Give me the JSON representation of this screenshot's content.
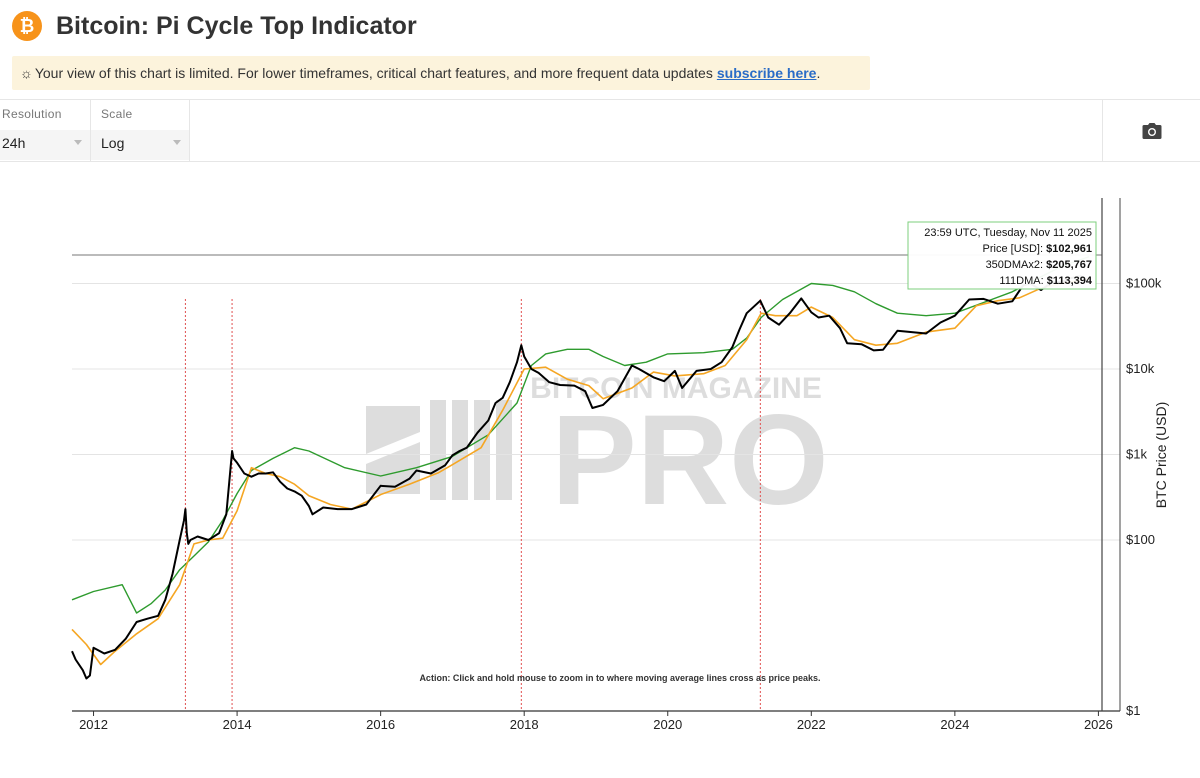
{
  "header": {
    "logo_glyph": "₿",
    "title": "Bitcoin: Pi Cycle Top Indicator"
  },
  "notice": {
    "icon": "sun-icon",
    "text": "Your view of this chart is limited. For lower timeframes, critical chart features, and more frequent data updates",
    "link_text": "subscribe here",
    "after": "."
  },
  "controls": {
    "resolution": {
      "label": "Resolution",
      "value": "24h"
    },
    "scale": {
      "label": "Scale",
      "value": "Log"
    },
    "camera_icon": "camera-icon"
  },
  "colors": {
    "price": "#000000",
    "dma111": "#f5a623",
    "dma350x2": "#2e9b2e",
    "cross": "#e05050",
    "tooltip_border": "#7ccf7c"
  },
  "chart_data": {
    "type": "line",
    "y_scale": "log",
    "ylabel": "BTC Price (USD)",
    "y_ticks": [
      {
        "value": 1,
        "label": "$1"
      },
      {
        "value": 100,
        "label": "$100"
      },
      {
        "value": 1000,
        "label": "$1k"
      },
      {
        "value": 10000,
        "label": "$10k"
      },
      {
        "value": 100000,
        "label": "$100k"
      }
    ],
    "x_ticks": [
      "2012",
      "2014",
      "2016",
      "2018",
      "2020",
      "2022",
      "2024",
      "2026"
    ],
    "xlim": [
      2011.7,
      2026.05
    ],
    "ylim": [
      1,
      1000000
    ],
    "cross_lines": [
      2013.28,
      2013.93,
      2017.96,
      2021.29
    ],
    "tooltip": {
      "date": "23:59 UTC, Tuesday, Nov 11 2025",
      "price_label": "Price [USD]:",
      "price_value": "$102,961",
      "dma350_label": "350DMAx2:",
      "dma350_value": "$205,767",
      "dma111_label": "111DMA:",
      "dma111_value": "$113,394"
    },
    "action_note": "Action: Click and hold mouse to zoom in to where moving average lines cross as price peaks.",
    "watermark": {
      "top": "BITCOIN MAGAZINE",
      "main": "PRO"
    },
    "series": [
      {
        "name": "Price [USD]",
        "x": [
          2011.7,
          2011.75,
          2011.85,
          2011.9,
          2011.95,
          2012.0,
          2012.15,
          2012.3,
          2012.45,
          2012.6,
          2012.75,
          2012.9,
          2013.0,
          2013.1,
          2013.2,
          2013.26,
          2013.28,
          2013.3,
          2013.32,
          2013.35,
          2013.45,
          2013.6,
          2013.75,
          2013.85,
          2013.93,
          2013.95,
          2014.0,
          2014.1,
          2014.2,
          2014.3,
          2014.4,
          2014.5,
          2014.6,
          2014.7,
          2014.8,
          2014.9,
          2015.0,
          2015.05,
          2015.2,
          2015.4,
          2015.6,
          2015.8,
          2016.0,
          2016.2,
          2016.4,
          2016.5,
          2016.7,
          2016.9,
          2017.0,
          2017.1,
          2017.2,
          2017.35,
          2017.5,
          2017.6,
          2017.7,
          2017.8,
          2017.9,
          2017.96,
          2018.0,
          2018.1,
          2018.2,
          2018.35,
          2018.5,
          2018.7,
          2018.85,
          2018.95,
          2019.1,
          2019.3,
          2019.5,
          2019.6,
          2019.8,
          2019.95,
          2020.1,
          2020.2,
          2020.4,
          2020.6,
          2020.75,
          2020.9,
          2021.0,
          2021.1,
          2021.29,
          2021.4,
          2021.55,
          2021.7,
          2021.86,
          2022.0,
          2022.1,
          2022.25,
          2022.4,
          2022.5,
          2022.7,
          2022.87,
          2023.0,
          2023.2,
          2023.4,
          2023.6,
          2023.8,
          2024.0,
          2024.2,
          2024.4,
          2024.6,
          2024.8,
          2024.95,
          2025.05,
          2025.2,
          2025.35,
          2025.5,
          2025.6,
          2025.75,
          2025.87
        ],
        "y": [
          5.0,
          4.0,
          3.0,
          2.4,
          2.6,
          5.5,
          4.7,
          5.2,
          7.0,
          11,
          12,
          13,
          20,
          40,
          100,
          170,
          230,
          120,
          90,
          100,
          110,
          100,
          120,
          200,
          1100,
          900,
          800,
          600,
          550,
          600,
          600,
          620,
          480,
          400,
          370,
          330,
          250,
          200,
          240,
          230,
          230,
          260,
          430,
          420,
          520,
          650,
          600,
          750,
          980,
          1100,
          1200,
          1800,
          2500,
          4000,
          4600,
          7000,
          12000,
          19000,
          14000,
          10000,
          9000,
          7000,
          6500,
          6400,
          5500,
          3500,
          3800,
          5500,
          11000,
          10000,
          8000,
          7200,
          9500,
          6000,
          9500,
          10000,
          12000,
          18000,
          29000,
          45000,
          63000,
          40000,
          33000,
          45000,
          67000,
          46000,
          40000,
          42000,
          30000,
          20000,
          19500,
          16500,
          16800,
          28000,
          27000,
          26000,
          35000,
          42000,
          65000,
          66000,
          58000,
          62000,
          95000,
          100000,
          84000,
          103000,
          105000,
          115000,
          122000,
          103000
        ]
      },
      {
        "name": "111DMA",
        "x": [
          2011.7,
          2011.9,
          2012.1,
          2012.3,
          2012.6,
          2012.9,
          2013.2,
          2013.4,
          2013.6,
          2013.8,
          2014.0,
          2014.2,
          2014.4,
          2014.6,
          2014.8,
          2015.0,
          2015.3,
          2015.6,
          2016.0,
          2016.4,
          2016.8,
          2017.0,
          2017.4,
          2017.7,
          2018.0,
          2018.3,
          2018.6,
          2018.9,
          2019.1,
          2019.5,
          2019.8,
          2020.1,
          2020.5,
          2020.8,
          2021.1,
          2021.3,
          2021.5,
          2021.8,
          2022.0,
          2022.3,
          2022.6,
          2022.9,
          2023.2,
          2023.6,
          2024.0,
          2024.3,
          2024.6,
          2024.9,
          2025.2,
          2025.5,
          2025.87
        ],
        "y": [
          9,
          6,
          3.5,
          5,
          8,
          12,
          30,
          90,
          100,
          105,
          220,
          700,
          600,
          550,
          450,
          330,
          260,
          230,
          340,
          450,
          610,
          760,
          1200,
          3300,
          10000,
          10500,
          7600,
          6400,
          4500,
          6000,
          9200,
          8300,
          8800,
          11000,
          22000,
          45000,
          42000,
          42000,
          53000,
          40000,
          22000,
          19000,
          20000,
          27000,
          30000,
          55000,
          63000,
          68000,
          88000,
          100000,
          113394
        ]
      },
      {
        "name": "350DMAx2",
        "x": [
          2011.7,
          2012.0,
          2012.4,
          2012.6,
          2012.8,
          2013.0,
          2013.2,
          2013.4,
          2013.6,
          2013.8,
          2014.0,
          2014.2,
          2014.5,
          2014.8,
          2015.0,
          2015.5,
          2016.0,
          2016.5,
          2017.0,
          2017.5,
          2017.9,
          2018.1,
          2018.3,
          2018.6,
          2018.9,
          2019.1,
          2019.4,
          2019.7,
          2020.0,
          2020.5,
          2020.9,
          2021.1,
          2021.3,
          2021.6,
          2022.0,
          2022.3,
          2022.6,
          2022.9,
          2023.2,
          2023.6,
          2024.0,
          2024.4,
          2024.8,
          2025.2,
          2025.5,
          2025.87
        ],
        "y": [
          20,
          25,
          30,
          14,
          18,
          26,
          45,
          65,
          95,
          170,
          350,
          650,
          900,
          1200,
          1100,
          700,
          560,
          700,
          950,
          1700,
          4000,
          11000,
          15000,
          17000,
          17000,
          14000,
          11000,
          12000,
          15000,
          15500,
          17000,
          23000,
          40000,
          65000,
          100000,
          95000,
          80000,
          58000,
          45000,
          42000,
          45000,
          60000,
          80000,
          120000,
          160000,
          205767
        ]
      }
    ]
  }
}
